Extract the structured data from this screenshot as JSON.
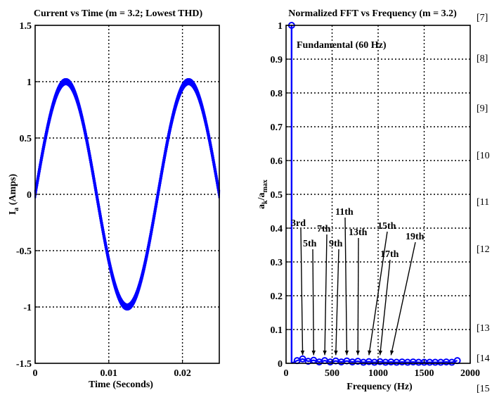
{
  "side_references": [
    "[7]",
    "[8]",
    "[9]",
    "[10",
    "[11",
    "[12",
    "[13",
    "[14",
    "[15"
  ],
  "chart_data": [
    {
      "type": "line",
      "title": "Current vs Time (m = 3.2; Lowest THD)",
      "xlabel": "Time (Seconds)",
      "ylabel": "I_a (Amps)",
      "ylabel_main": "I",
      "ylabel_sub": "a",
      "ylabel_rest": " (Amps)",
      "xlim": [
        0,
        0.025
      ],
      "ylim": [
        -1.5,
        1.5
      ],
      "xticks": [
        0,
        0.01,
        0.02
      ],
      "xtick_labels": [
        "0",
        "0.01",
        "0.02"
      ],
      "yticks": [
        -1.5,
        -1,
        -0.5,
        0,
        0.5,
        1,
        1.5
      ],
      "ytick_labels": [
        "-1.5",
        "-1",
        "-0.5",
        "0",
        "0.5",
        "1",
        "1.5"
      ],
      "grid": true,
      "line_color": "#0000ff",
      "series": [
        {
          "signal": "sinusoid with high-frequency switching ripple",
          "frequency_hz": 60,
          "amplitude": 1.0,
          "ripple_amplitude": 0.04,
          "x_start": 0,
          "x_end": 0.025
        }
      ]
    },
    {
      "type": "line",
      "title": "Normalized FFT  vs Frequency (m = 3.2)",
      "xlabel": "Frequency (Hz)",
      "ylabel": "a_k/a_max",
      "ylabel_a1": "a",
      "ylabel_k": "k",
      "ylabel_slash": "/a",
      "ylabel_max": "max",
      "xlim": [
        0,
        2000
      ],
      "ylim": [
        0,
        1
      ],
      "xticks": [
        0,
        500,
        1000,
        1500,
        2000
      ],
      "xtick_labels": [
        "0",
        "500",
        "1000",
        "1500",
        "2000"
      ],
      "yticks": [
        0,
        0.1,
        0.2,
        0.3,
        0.4,
        0.5,
        0.6,
        0.7,
        0.8,
        0.9,
        1
      ],
      "ytick_labels": [
        "0",
        "0.1",
        "0.2",
        "0.3",
        "0.4",
        "0.5",
        "0.6",
        "0.7",
        "0.8",
        "0.9",
        "1"
      ],
      "grid": true,
      "line_color": "#0000ff",
      "fundamental": {
        "x": 60,
        "y": 1.0,
        "label": "Fundamental (60 Hz)"
      },
      "harmonics": {
        "x": [
          120,
          180,
          240,
          300,
          360,
          420,
          480,
          540,
          600,
          660,
          720,
          780,
          840,
          900,
          960,
          1020,
          1080,
          1140,
          1200,
          1260,
          1320,
          1380,
          1440,
          1500,
          1560,
          1620,
          1680,
          1740,
          1800,
          1860
        ],
        "y": [
          0.008,
          0.013,
          0.006,
          0.009,
          0.004,
          0.008,
          0.004,
          0.007,
          0.004,
          0.007,
          0.004,
          0.006,
          0.003,
          0.005,
          0.003,
          0.005,
          0.003,
          0.004,
          0.003,
          0.004,
          0.003,
          0.004,
          0.003,
          0.003,
          0.003,
          0.003,
          0.003,
          0.004,
          0.003,
          0.008
        ]
      },
      "annotations": [
        {
          "text": "3rd",
          "x": 180,
          "y": 0.02
        },
        {
          "text": "5th",
          "x": 300,
          "y": 0.02
        },
        {
          "text": "7th",
          "x": 420,
          "y": 0.02
        },
        {
          "text": "9th",
          "x": 540,
          "y": 0.02
        },
        {
          "text": "11th",
          "x": 660,
          "y": 0.02
        },
        {
          "text": "13th",
          "x": 780,
          "y": 0.02
        },
        {
          "text": "15th",
          "x": 900,
          "y": 0.02
        },
        {
          "text": "17th",
          "x": 1020,
          "y": 0.02
        },
        {
          "text": "19th",
          "x": 1140,
          "y": 0.02
        }
      ]
    }
  ]
}
